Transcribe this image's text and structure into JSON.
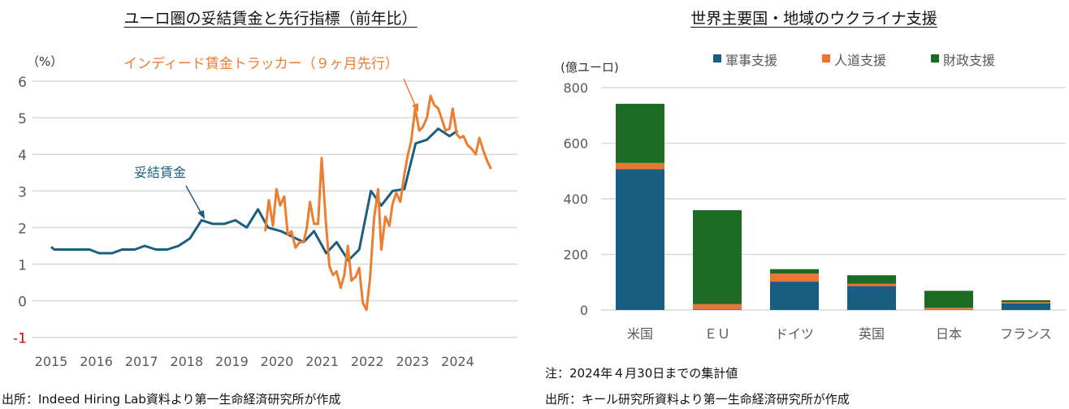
{
  "left": {
    "title": "ユーロ圏の妥結賃金と先行指標（前年比）",
    "source": "出所：Indeed Hiring Lab資料より第一生命経済研究所が作成"
  },
  "right": {
    "title": "世界主要国・地域のウクライナ支援",
    "note": "注：2024年４月30日までの集計値",
    "source": "出所：キール研究所資料より第一生命経済研究所が作成"
  },
  "chart_data": [
    {
      "type": "line",
      "ylabel": "（%）",
      "ylim": [
        -1,
        6
      ],
      "yticks": [
        "-1",
        "0",
        "1",
        "2",
        "3",
        "4",
        "5",
        "6"
      ],
      "xlim": [
        2015,
        2024.8
      ],
      "xticks": [
        "2015",
        "2016",
        "2017",
        "2018",
        "2019",
        "2020",
        "2021",
        "2022",
        "2023",
        "2024"
      ],
      "grid": true,
      "colors": {
        "negotiated": "#1a5f7e",
        "indeed": "#ed7d31",
        "negative_tick": "#e00000"
      },
      "series": [
        {
          "name": "妥結賃金",
          "points": [
            [
              2015.0,
              1.47
            ],
            [
              2015.07,
              1.4
            ],
            [
              2015.85,
              1.4
            ],
            [
              2016.06,
              1.3
            ],
            [
              2016.35,
              1.3
            ],
            [
              2016.57,
              1.4
            ],
            [
              2016.85,
              1.4
            ],
            [
              2017.07,
              1.5
            ],
            [
              2017.32,
              1.4
            ],
            [
              2017.57,
              1.4
            ],
            [
              2017.82,
              1.5
            ],
            [
              2018.07,
              1.7
            ],
            [
              2018.33,
              2.2
            ],
            [
              2018.58,
              2.1
            ],
            [
              2018.83,
              2.1
            ],
            [
              2019.08,
              2.2
            ],
            [
              2019.33,
              2.0
            ],
            [
              2019.58,
              2.5
            ],
            [
              2019.8,
              2.0
            ],
            [
              2020.09,
              1.9
            ],
            [
              2020.34,
              1.75
            ],
            [
              2020.59,
              1.6
            ],
            [
              2020.82,
              1.9
            ],
            [
              2021.09,
              1.3
            ],
            [
              2021.32,
              1.6
            ],
            [
              2021.58,
              1.1
            ],
            [
              2021.82,
              1.4
            ],
            [
              2022.08,
              3.0
            ],
            [
              2022.31,
              2.6
            ],
            [
              2022.56,
              3.0
            ],
            [
              2022.82,
              3.05
            ],
            [
              2023.07,
              4.3
            ],
            [
              2023.32,
              4.4
            ],
            [
              2023.57,
              4.7
            ],
            [
              2023.82,
              4.5
            ],
            [
              2024.0,
              4.65
            ]
          ]
        },
        {
          "name": "インディード賃金トラッカー（９ヶ月先行）",
          "points": [
            [
              2019.74,
              1.9
            ],
            [
              2019.82,
              2.75
            ],
            [
              2019.91,
              2.05
            ],
            [
              2019.99,
              3.05
            ],
            [
              2020.07,
              2.6
            ],
            [
              2020.16,
              2.85
            ],
            [
              2020.24,
              1.8
            ],
            [
              2020.32,
              1.9
            ],
            [
              2020.41,
              1.45
            ],
            [
              2020.5,
              1.6
            ],
            [
              2020.59,
              1.6
            ],
            [
              2020.66,
              2.0
            ],
            [
              2020.73,
              2.7
            ],
            [
              2020.82,
              2.1
            ],
            [
              2020.91,
              2.1
            ],
            [
              2020.99,
              3.9
            ],
            [
              2021.08,
              2.2
            ],
            [
              2021.16,
              0.95
            ],
            [
              2021.24,
              0.7
            ],
            [
              2021.32,
              0.8
            ],
            [
              2021.41,
              0.35
            ],
            [
              2021.49,
              0.7
            ],
            [
              2021.57,
              1.5
            ],
            [
              2021.65,
              0.55
            ],
            [
              2021.74,
              0.65
            ],
            [
              2021.82,
              0.9
            ],
            [
              2021.9,
              -0.05
            ],
            [
              2021.98,
              -0.25
            ],
            [
              2022.06,
              0.6
            ],
            [
              2022.15,
              2.25
            ],
            [
              2022.24,
              3.05
            ],
            [
              2022.31,
              1.4
            ],
            [
              2022.4,
              2.3
            ],
            [
              2022.49,
              2.05
            ],
            [
              2022.56,
              2.65
            ],
            [
              2022.64,
              2.95
            ],
            [
              2022.73,
              2.7
            ],
            [
              2022.82,
              3.45
            ],
            [
              2022.9,
              4.0
            ],
            [
              2022.97,
              4.35
            ],
            [
              2023.06,
              5.25
            ],
            [
              2023.15,
              4.65
            ],
            [
              2023.23,
              4.75
            ],
            [
              2023.32,
              5.0
            ],
            [
              2023.4,
              5.6
            ],
            [
              2023.48,
              5.35
            ],
            [
              2023.57,
              5.25
            ],
            [
              2023.64,
              5.0
            ],
            [
              2023.73,
              4.65
            ],
            [
              2023.82,
              4.7
            ],
            [
              2023.89,
              5.25
            ],
            [
              2023.98,
              4.55
            ],
            [
              2024.05,
              4.45
            ],
            [
              2024.13,
              4.5
            ],
            [
              2024.22,
              4.25
            ],
            [
              2024.31,
              4.15
            ],
            [
              2024.4,
              4.0
            ],
            [
              2024.48,
              4.45
            ],
            [
              2024.57,
              4.1
            ],
            [
              2024.66,
              3.8
            ],
            [
              2024.74,
              3.6
            ]
          ]
        }
      ],
      "annotations": [
        "妥結賃金",
        "インディード賃金トラッカー（９ヶ月先行）"
      ]
    },
    {
      "type": "bar",
      "stacked": true,
      "ylabel": "(億ユーロ)",
      "ylim": [
        0,
        800
      ],
      "yticks": [
        "0",
        "200",
        "400",
        "600",
        "800"
      ],
      "grid": true,
      "legend_position": "top",
      "categories": [
        "米国",
        "ＥＵ",
        "ドイツ",
        "英国",
        "日本",
        "フランス"
      ],
      "series": [
        {
          "name": "軍事支援",
          "color": "#175e82",
          "values": [
            507,
            2,
            102,
            86,
            1,
            24
          ]
        },
        {
          "name": "人道支援",
          "color": "#ed7533",
          "values": [
            22,
            19,
            29,
            8,
            7,
            4
          ]
        },
        {
          "name": "財政支援",
          "color": "#1b6b25",
          "values": [
            213,
            338,
            16,
            31,
            61,
            7
          ]
        }
      ]
    }
  ]
}
